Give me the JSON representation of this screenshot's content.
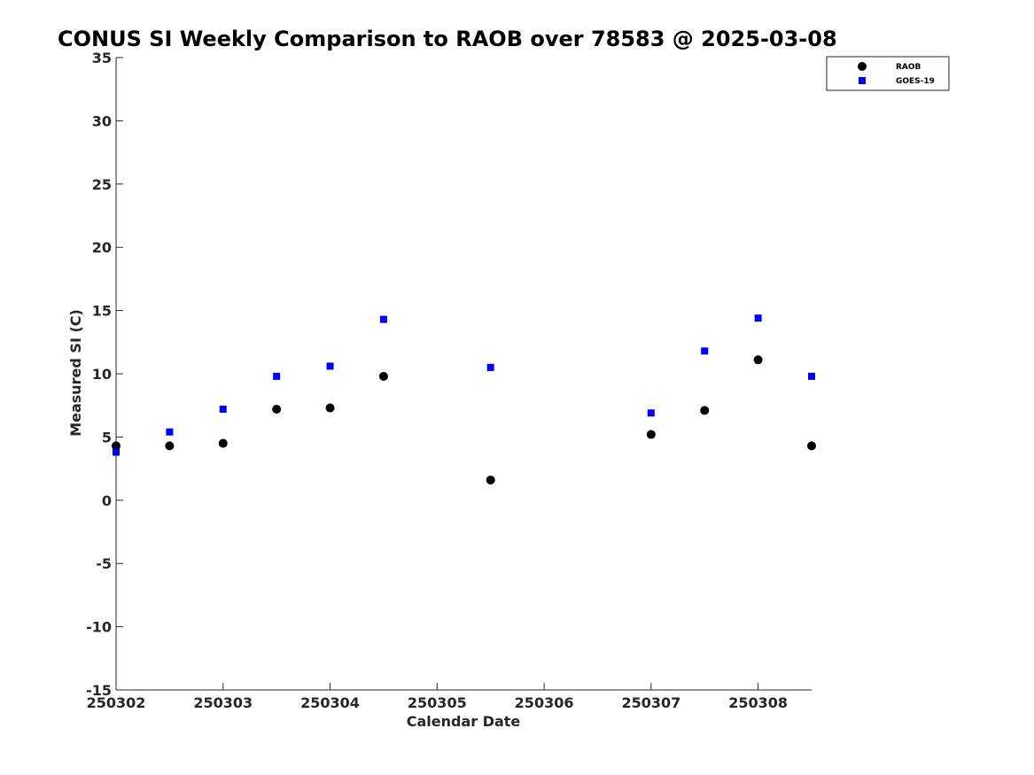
{
  "chart_data": {
    "type": "scatter",
    "title": "CONUS SI Weekly Comparison to RAOB over 78583 @ 2025-03-08",
    "xlabel": "Calendar Date",
    "ylabel": "Measured SI (C)",
    "xlim": [
      0,
      6.5
    ],
    "ylim": [
      -15,
      35
    ],
    "x_ticks": [
      0,
      1,
      2,
      3,
      4,
      5,
      6
    ],
    "x_tick_labels": [
      "250302",
      "250303",
      "250304",
      "250305",
      "250306",
      "250307",
      "250308"
    ],
    "y_ticks": [
      -15,
      -10,
      -5,
      0,
      5,
      10,
      15,
      20,
      25,
      30,
      35
    ],
    "y_tick_labels": [
      "-15",
      "-10",
      "-5",
      "0",
      "5",
      "10",
      "15",
      "20",
      "25",
      "30",
      "35"
    ],
    "legend_position": "top-right",
    "series": [
      {
        "name": "RAOB",
        "marker": "circle",
        "color": "#000000",
        "x": [
          0,
          0.5,
          1,
          1.5,
          2,
          2.5,
          3.5,
          5,
          5.5,
          6,
          6.5
        ],
        "y": [
          4.3,
          4.3,
          4.5,
          7.2,
          7.3,
          9.8,
          1.6,
          5.2,
          7.1,
          11.1,
          4.3
        ]
      },
      {
        "name": "GOES-19",
        "marker": "square",
        "color": "#0000ff",
        "x": [
          0,
          0.5,
          1,
          1.5,
          2,
          2.5,
          3.5,
          5,
          5.5,
          6,
          6.5
        ],
        "y": [
          3.8,
          5.4,
          7.2,
          9.8,
          10.6,
          14.3,
          10.5,
          6.9,
          11.8,
          14.4,
          9.8
        ]
      }
    ]
  }
}
